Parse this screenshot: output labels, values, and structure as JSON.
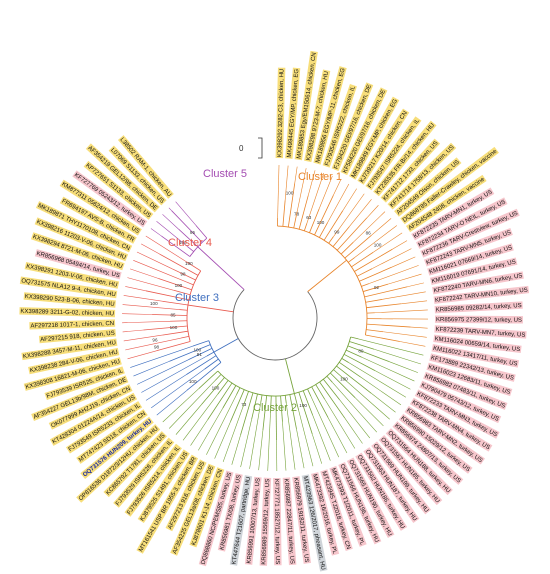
{
  "scale_bar": "0",
  "colors": {
    "yellow": "#f7de7a",
    "pink": "#f6c6cc",
    "grey": "#cfd4d9",
    "text": "#111111",
    "highlight_text": "#1a2aa0",
    "trunk": "#666666"
  },
  "clusters": [
    {
      "key": "c1",
      "label": "Cluster 1",
      "color": "#e8842a"
    },
    {
      "key": "c2",
      "label": "Cluster 2",
      "color": "#76a33b"
    },
    {
      "key": "c3",
      "label": "Cluster 3",
      "color": "#3f6fbf"
    },
    {
      "key": "c4",
      "label": "Cluster 4",
      "color": "#e85a4f"
    },
    {
      "key": "c5",
      "label": "Cluster 5",
      "color": "#a44db2"
    }
  ],
  "leaves": [
    {
      "label": "KX398292 3282-C3, chicken, HU",
      "bg": "yellow",
      "cluster": "c1"
    },
    {
      "label": "MK499445 EGY/MP, chicken, EG",
      "bg": "yellow",
      "cluster": "c1"
    },
    {
      "label": "MK189853 Egy/EM150614, chicken, CN",
      "bg": "yellow",
      "cluster": "c1"
    },
    {
      "label": "KX398298 9723-M-7, chicken, HU",
      "bg": "yellow",
      "cluster": "c1"
    },
    {
      "label": "MK189856 EGY/MP-11, chicken, EG",
      "bg": "yellow",
      "cluster": "c1"
    },
    {
      "label": "FJ793546 ISR5222, chicken, IL",
      "bg": "yellow",
      "cluster": "c1"
    },
    {
      "label": "FJ794220 GEI/97/16, chicken, DE",
      "bg": "yellow",
      "cluster": "c1"
    },
    {
      "label": "KF584220 GEI/97/16, chicken, DE",
      "bg": "yellow",
      "cluster": "c1"
    },
    {
      "label": "MK189849 EGY-MP, chicken, EG",
      "bg": "yellow",
      "cluster": "c1"
    },
    {
      "label": "KJ739217 K20/14, chicken, CN",
      "bg": "yellow",
      "cluster": "c1"
    },
    {
      "label": "FJ793547 ISR5224, chicken, IL",
      "bg": "yellow",
      "cluster": "c1"
    },
    {
      "label": "KT235535 FR-Br/14, chicken, HU",
      "bg": "yellow",
      "cluster": "c1"
    },
    {
      "label": "KF741712 1733, chicken, US",
      "bg": "yellow",
      "cluster": "c1"
    },
    {
      "label": "KF741714 1758/13, chicken, US",
      "bg": "yellow",
      "cluster": "c1"
    },
    {
      "label": "AF204549 Olson, chicken, US",
      "bg": "yellow",
      "cluster": "c1"
    },
    {
      "label": "DQ868785 Faller-Crawley, chicken, vaccine",
      "bg": "yellow",
      "cluster": "c1"
    },
    {
      "label": "AF204548 2408, chicken, vaccine",
      "bg": "yellow",
      "cluster": "c1"
    },
    {
      "label": "KF872235 TARV-MN1, turkey, US",
      "bg": "pink",
      "cluster": "c1"
    },
    {
      "label": "KF872234 TARV-O NEIL, turkey, US",
      "bg": "pink",
      "cluster": "c1"
    },
    {
      "label": "KF872236 TARV-Crestview, turkey, US",
      "bg": "pink",
      "cluster": "c1"
    },
    {
      "label": "KF872243 TARV-MN5, turkey, US",
      "bg": "pink",
      "cluster": "c1"
    },
    {
      "label": "KM116021 07669/14, turkey, US",
      "bg": "pink",
      "cluster": "c1"
    },
    {
      "label": "KM116019 07691/14, turkey, US",
      "bg": "pink",
      "cluster": "c1"
    },
    {
      "label": "KF872240 TARV-MN6, turkey, US",
      "bg": "pink",
      "cluster": "c1"
    },
    {
      "label": "KF872242 TARV-MN10, turkey, US",
      "bg": "pink",
      "cluster": "c1"
    },
    {
      "label": "KR856985 09282/14, turkey, US",
      "bg": "pink",
      "cluster": "c1"
    },
    {
      "label": "KR856975 27399/12, turkey, US",
      "bg": "pink",
      "cluster": "c1"
    },
    {
      "label": "KF872239 TARV-MN7, turkey, US",
      "bg": "pink",
      "cluster": "c1"
    },
    {
      "label": "KM116024 00659/14, turkey, US",
      "bg": "pink",
      "cluster": "c1"
    },
    {
      "label": "KM116022 13417/11, turkey, US",
      "bg": "pink",
      "cluster": "c1"
    },
    {
      "label": "KF173889 22342/13, turkey, US",
      "bg": "pink",
      "cluster": "c2"
    },
    {
      "label": "KM116023 12683/11, turkey, US",
      "bg": "pink",
      "cluster": "c2"
    },
    {
      "label": "KR856982 07483/11, turkey, US",
      "bg": "pink",
      "cluster": "c2"
    },
    {
      "label": "KJ790479 05743/12, turkey, US",
      "bg": "pink",
      "cluster": "c2"
    },
    {
      "label": "KF872233 TARV-MN3, turkey, US",
      "bg": "pink",
      "cluster": "c2"
    },
    {
      "label": "KF872238 TARV-MN4, turkey, US",
      "bg": "pink",
      "cluster": "c2"
    },
    {
      "label": "KR856983 TARV-MN2, turkey, US",
      "bg": "pink",
      "cluster": "c2"
    },
    {
      "label": "KR856990 15029/12, turkey, US",
      "bg": "pink",
      "cluster": "c2"
    },
    {
      "label": "KR856974 24807/13, turkey, US",
      "bg": "pink",
      "cluster": "c2"
    },
    {
      "label": "OQ731564 HUN188, turkey, HU",
      "bg": "pink",
      "cluster": "c2"
    },
    {
      "label": "OQ731567 HUN185, turkey, HU",
      "bg": "pink",
      "cluster": "c2"
    },
    {
      "label": "OQ731569 HUN199, turkey, HU",
      "bg": "pink",
      "cluster": "c2"
    },
    {
      "label": "OQ731563 HUN187, turkey, HU",
      "bg": "pink",
      "cluster": "c2"
    },
    {
      "label": "OQ731562 HUN186, turkey, HU",
      "bg": "pink",
      "cluster": "c2"
    },
    {
      "label": "OQ731565 HUN190, turkey, HU",
      "bg": "pink",
      "cluster": "c2"
    },
    {
      "label": "OQ731566 HUN196, turkey, HU",
      "bg": "pink",
      "cluster": "c2"
    },
    {
      "label": "MK473393 T1/2011, turkey, PL",
      "bg": "pink",
      "cluster": "c2"
    },
    {
      "label": "MT423945 TJ2018, turkey, CN",
      "bg": "pink",
      "cluster": "c2"
    },
    {
      "label": "MK473392 16/2016, turkey, PL",
      "bg": "pink",
      "cluster": "c2"
    },
    {
      "label": "MT423963 126/2017, pheasant, HU",
      "bg": "grey",
      "cluster": "c2"
    },
    {
      "label": "KR856979 19182/11, turkey, US",
      "bg": "pink",
      "cluster": "c2"
    },
    {
      "label": "KR856987 22847/11, turkey, US",
      "bg": "pink",
      "cluster": "c2"
    },
    {
      "label": "KF727771 18527/12, turkey, US",
      "bg": "pink",
      "cluster": "c2"
    },
    {
      "label": "KR856989 15569/12, turkey, US",
      "bg": "pink",
      "cluster": "c2"
    },
    {
      "label": "KR856991 10007/13, turkey, US",
      "bg": "pink",
      "cluster": "c2"
    },
    {
      "label": "KT447644 T21607, partridge, HU",
      "bg": "grey",
      "cluster": "c2"
    },
    {
      "label": "KR856981 TX/08, turkey, US",
      "bg": "pink",
      "cluster": "c2"
    },
    {
      "label": "DQ868860 NC/PEMS85, turkey, US",
      "bg": "pink",
      "cluster": "c2"
    },
    {
      "label": "KJ878601 K1-14, chicken, CN",
      "bg": "yellow",
      "cluster": "c2"
    },
    {
      "label": "AF354225 GEL13a/08, chicken, DE",
      "bg": "yellow",
      "cluster": "c2"
    },
    {
      "label": "AF297213 916, chicken, US",
      "bg": "yellow",
      "cluster": "c2"
    },
    {
      "label": "MT161541 USP BR 1955-3, chicken, BR",
      "bg": "yellow",
      "cluster": "c2"
    },
    {
      "label": "KJ879525 S1491, chicken, US",
      "bg": "yellow",
      "cluster": "c2"
    },
    {
      "label": "FJ793526 ISR5214, chicken, IL",
      "bg": "yellow",
      "cluster": "c2"
    },
    {
      "label": "FJ793529 ISR5228, chicken, IL",
      "bg": "yellow",
      "cluster": "c2"
    },
    {
      "label": "KC865792 T1781, chicken, US",
      "bg": "yellow",
      "cluster": "c2"
    },
    {
      "label": "OP816536 D1872/3/12HU, chicken, HU",
      "bg": "yellow",
      "cluster": "c2"
    },
    {
      "label": "OQ731576 HUN209, turkey, HU",
      "bg": "yellow",
      "cluster": "c3",
      "highlight": true
    },
    {
      "label": "MT747423 SD18, chicken, CN",
      "bg": "yellow",
      "cluster": "c3"
    },
    {
      "label": "FJ793549 ISR5233, chicken, IL",
      "bg": "yellow",
      "cluster": "c3"
    },
    {
      "label": "KT428304 01224A/14, chicken, US",
      "bg": "yellow",
      "cluster": "c3"
    },
    {
      "label": "OK077999 AHZJ19, chicken, CN",
      "bg": "yellow",
      "cluster": "c3"
    },
    {
      "label": "AF354227 GEL13b/98M, chicken, DE",
      "bg": "yellow",
      "cluster": "c3"
    },
    {
      "label": "FJ793539 ISR525, chicken, IL",
      "bg": "yellow",
      "cluster": "c3"
    },
    {
      "label": "KX398308 16821-M-06, chicken, HU",
      "bg": "yellow",
      "cluster": "c4"
    },
    {
      "label": "KX398238 284-V-06, chicken, HU",
      "bg": "yellow",
      "cluster": "c4"
    },
    {
      "label": "KX398288 3457-M-11, chicken, HU",
      "bg": "yellow",
      "cluster": "c4"
    },
    {
      "label": "AF297215 918, chicken, US",
      "bg": "yellow",
      "cluster": "c4"
    },
    {
      "label": "AF297218 1017-1, chicken, CN",
      "bg": "yellow",
      "cluster": "c4"
    },
    {
      "label": "KX398289 3211-G-02, chicken, HU",
      "bg": "yellow",
      "cluster": "c4"
    },
    {
      "label": "KX398290 523-B-06, chicken, HU",
      "bg": "yellow",
      "cluster": "c4"
    },
    {
      "label": "OQ731575 NLA12 9-4, chicken, HU",
      "bg": "yellow",
      "cluster": "c4"
    },
    {
      "label": "KX398291 1203-V-06, chicken, HU",
      "bg": "yellow",
      "cluster": "c4"
    },
    {
      "label": "KR856968 05494/14, turkey, US",
      "bg": "pink",
      "cluster": "c4"
    },
    {
      "label": "KX398294 8721-M-06, chicken, HU",
      "bg": "yellow",
      "cluster": "c4"
    },
    {
      "label": "KX398216 11203-V-06, chicken, HU",
      "bg": "yellow",
      "cluster": "c4"
    },
    {
      "label": "MK189871 THY1170108, chicken, CN",
      "bg": "yellow",
      "cluster": "c4"
    },
    {
      "label": "FR694197 AVS-B, chicken, FR",
      "bg": "yellow",
      "cluster": "c4"
    },
    {
      "label": "KM877311 05624/12, chicken, US",
      "bg": "yellow",
      "cluster": "c4"
    },
    {
      "label": "KF727769 05243/12, turkey, US",
      "bg": "pink",
      "cluster": "c5"
    },
    {
      "label": "KP727651 S1133, chicken, US",
      "bg": "yellow",
      "cluster": "c5"
    },
    {
      "label": "AF354219 GEL12/98, chicken, DE",
      "bg": "yellow",
      "cluster": "c5"
    },
    {
      "label": "L07069 S1133, chicken, US",
      "bg": "yellow",
      "cluster": "c5"
    },
    {
      "label": "L38502 RAM-1, chicken, AU",
      "bg": "yellow",
      "cluster": "c5"
    }
  ],
  "bootstraps": [
    {
      "v": "100",
      "leaf": 1.5
    },
    {
      "v": "78",
      "leaf": 3
    },
    {
      "v": "63",
      "leaf": 5
    },
    {
      "v": "100",
      "leaf": 7
    },
    {
      "v": "99",
      "leaf": 10
    },
    {
      "v": "86",
      "leaf": 13.5
    },
    {
      "v": "100",
      "leaf": 15.5
    },
    {
      "v": "92",
      "leaf": 21
    },
    {
      "v": "80",
      "leaf": 32
    },
    {
      "v": "100",
      "leaf": 38
    },
    {
      "v": "100",
      "leaf": 47
    },
    {
      "v": "73",
      "leaf": 58
    },
    {
      "v": "100",
      "leaf": 64
    },
    {
      "v": "100",
      "leaf": 67.5
    },
    {
      "v": "91",
      "leaf": 71
    },
    {
      "v": "100",
      "leaf": 72
    },
    {
      "v": "98",
      "leaf": 74.5
    },
    {
      "v": "96",
      "leaf": 75.5
    },
    {
      "v": "100",
      "leaf": 77
    },
    {
      "v": "85",
      "leaf": 79
    },
    {
      "v": "100",
      "leaf": 80.5
    },
    {
      "v": "100",
      "leaf": 84
    },
    {
      "v": "98",
      "leaf": 86
    },
    {
      "v": "100",
      "leaf": 88
    },
    {
      "v": "100",
      "leaf": 90
    },
    {
      "v": "95",
      "leaf": 92
    }
  ]
}
